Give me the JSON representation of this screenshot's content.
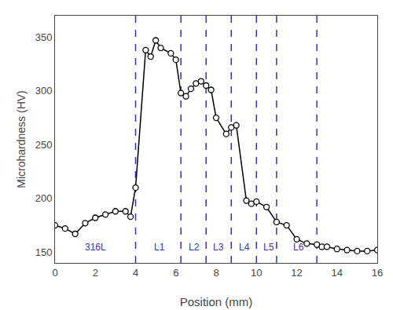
{
  "chart_data": {
    "type": "line",
    "x": [
      0.0,
      0.5,
      1.0,
      1.5,
      2.0,
      2.5,
      3.0,
      3.5,
      3.75,
      4.0,
      4.5,
      4.75,
      5.0,
      5.25,
      5.75,
      6.0,
      6.25,
      6.5,
      6.75,
      7.0,
      7.25,
      7.5,
      7.75,
      8.0,
      8.5,
      8.75,
      9.0,
      9.5,
      9.75,
      10.0,
      10.5,
      11.0,
      11.5,
      12.0,
      12.5,
      13.0,
      13.25,
      13.5,
      14.0,
      14.5,
      15.0,
      15.5,
      16.0
    ],
    "values": [
      175,
      172,
      167,
      177,
      182,
      185,
      188,
      188,
      183,
      210,
      338,
      332,
      347,
      340,
      335,
      329,
      298,
      295,
      302,
      307,
      309,
      305,
      301,
      275,
      260,
      266,
      268,
      198,
      195,
      197,
      192,
      178,
      175,
      162,
      158,
      157,
      155,
      155,
      153,
      152,
      151,
      151,
      152
    ],
    "color": "#000000",
    "marker": "circle",
    "line_style": "solid",
    "vlines": {
      "values": [
        4.0,
        6.25,
        7.5,
        8.75,
        10.0,
        11.0,
        13.0
      ],
      "color": "#3333bb",
      "line_style": "dash"
    },
    "annotations": [
      {
        "text": "316L",
        "x": 2.0,
        "y": 148,
        "color": "#3333bb"
      },
      {
        "text": "L1",
        "x": 5.2,
        "y": 148,
        "color": "#3333bb"
      },
      {
        "text": "L2",
        "x": 6.9,
        "y": 148,
        "color": "#3333bb"
      },
      {
        "text": "L3",
        "x": 8.1,
        "y": 148,
        "color": "#3333bb"
      },
      {
        "text": "L4",
        "x": 9.4,
        "y": 148,
        "color": "#3333bb"
      },
      {
        "text": "L5",
        "x": 10.6,
        "y": 148,
        "color": "#3333bb"
      },
      {
        "text": "L6",
        "x": 12.1,
        "y": 148,
        "color": "#3333bb"
      }
    ],
    "xlabel": "Position (mm)",
    "ylabel": "Microhardness (HV)",
    "xlim": [
      0,
      16
    ],
    "ylim": [
      140,
      370
    ],
    "xticks": [
      0,
      2,
      4,
      6,
      8,
      10,
      12,
      14,
      16
    ],
    "yticks": [
      150,
      200,
      250,
      300,
      350
    ],
    "grid": false
  }
}
